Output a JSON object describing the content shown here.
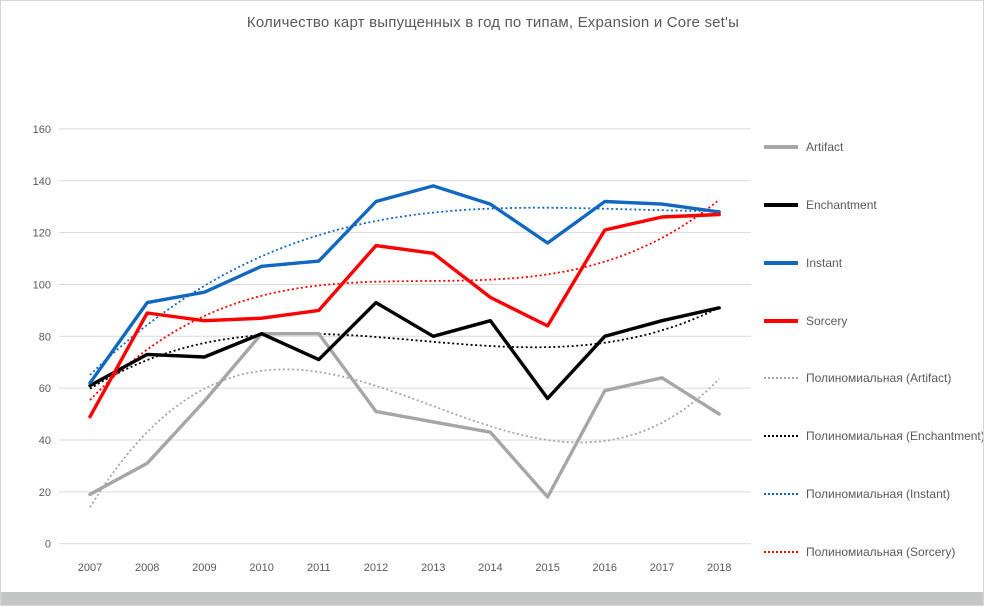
{
  "chart_data": {
    "type": "line",
    "title": "Количество карт выпущенных в год по типам, Expansion и Core set'ы",
    "categories": [
      "2007",
      "2008",
      "2009",
      "2010",
      "2011",
      "2012",
      "2013",
      "2014",
      "2015",
      "2016",
      "2017",
      "2018"
    ],
    "series": [
      {
        "name": "Artifact",
        "color": "#a6a6a6",
        "values": [
          19,
          31,
          55,
          81,
          81,
          51,
          47,
          43,
          18,
          59,
          64,
          50
        ]
      },
      {
        "name": "Enchantment",
        "color": "#000000",
        "values": [
          61,
          73,
          72,
          81,
          71,
          93,
          80,
          86,
          56,
          80,
          86,
          91
        ]
      },
      {
        "name": "Instant",
        "color": "#1268bf",
        "values": [
          62,
          93,
          97,
          107,
          109,
          132,
          138,
          131,
          116,
          132,
          131,
          128
        ]
      },
      {
        "name": "Sorcery",
        "color": "#fe0000",
        "values": [
          49,
          89,
          86,
          87,
          90,
          115,
          112,
          95,
          84,
          121,
          126,
          127
        ]
      }
    ],
    "trendlines": [
      {
        "label": "Полиномиальная (Artifact)",
        "series": "Artifact",
        "degree": 3
      },
      {
        "label": "Полиномиальная (Enchantment)",
        "series": "Enchantment",
        "degree": 3
      },
      {
        "label": "Полиномиальная (Instant)",
        "series": "Instant",
        "degree": 3
      },
      {
        "label": "Полиномиальная (Sorcery)",
        "series": "Sorcery",
        "degree": 3
      }
    ],
    "y_ticks": [
      "0",
      "20",
      "40",
      "60",
      "80",
      "100",
      "120",
      "140",
      "160"
    ],
    "ylim": [
      0,
      160
    ],
    "ytick_step": 20,
    "grid": true,
    "legend_position": "right",
    "colors": {
      "grid": "#d9d9d9",
      "axis_labels": "#595959",
      "title": "#595959",
      "legend_text": "#595959",
      "background": "#ffffff",
      "frame_border": "#d6d6d6",
      "bottom_bar": "#c3c6c4"
    }
  }
}
